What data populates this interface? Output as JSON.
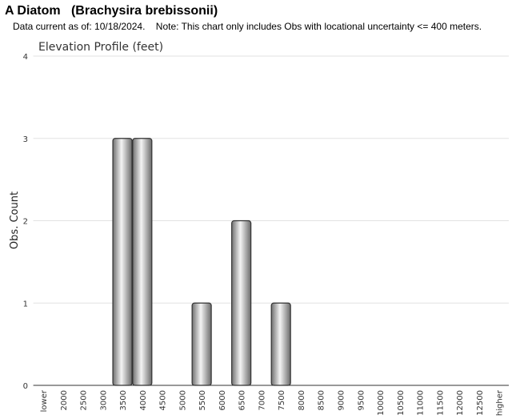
{
  "header": {
    "title": "A Diatom   (Brachysira brebissonii)",
    "note": "Data current as of: 10/18/2024.    Note: This chart only includes Obs with locational uncertainty <= 400 meters."
  },
  "chart_data": {
    "type": "bar",
    "title": "Elevation Profile (feet)",
    "y_label": "Obs. Count",
    "categories": [
      "lower",
      "2000",
      "2500",
      "3000",
      "3500",
      "4000",
      "4500",
      "5000",
      "5500",
      "6000",
      "6500",
      "7000",
      "7500",
      "8000",
      "8500",
      "9000",
      "9500",
      "10000",
      "10500",
      "11000",
      "11500",
      "12000",
      "12500",
      "higher"
    ],
    "values": [
      0,
      0,
      0,
      0,
      3,
      3,
      0,
      0,
      1,
      0,
      2,
      0,
      1,
      0,
      0,
      0,
      0,
      0,
      0,
      0,
      0,
      0,
      0,
      0
    ],
    "color": "#a0a0a0",
    "ylim": [
      0,
      4
    ],
    "yticks": [
      0,
      1,
      2,
      3,
      4
    ],
    "grid": true
  }
}
